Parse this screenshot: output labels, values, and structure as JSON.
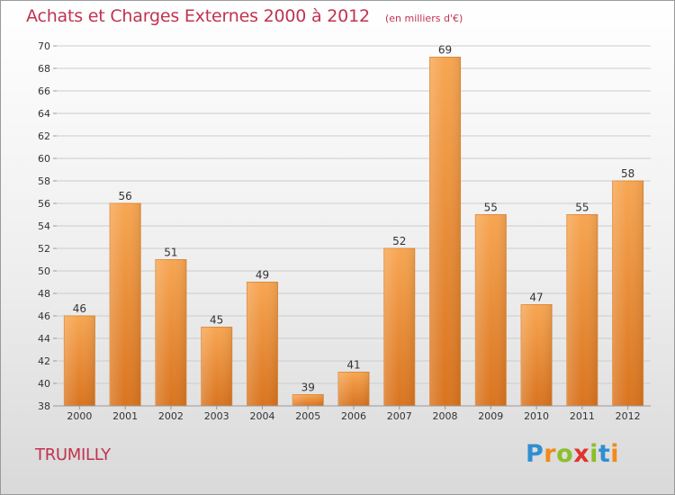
{
  "header": {
    "title": "Achats et Charges Externes 2000 à 2012",
    "subtitle": "(en milliers d'€)"
  },
  "footer": {
    "town": "TRUMILLY",
    "brand": "Proxiti"
  },
  "colors": {
    "title": "#c0334f",
    "bar_light": "#f7a652",
    "bar_dark": "#d9741f",
    "grid": "#cccccc"
  },
  "chart_data": {
    "type": "bar",
    "categories": [
      "2000",
      "2001",
      "2002",
      "2003",
      "2004",
      "2005",
      "2006",
      "2007",
      "2008",
      "2009",
      "2010",
      "2011",
      "2012"
    ],
    "values": [
      46,
      56,
      51,
      45,
      49,
      39,
      41,
      52,
      69,
      55,
      47,
      55,
      58
    ],
    "title": "Achats et Charges Externes 2000 à 2012",
    "subtitle": "(en milliers d'€)",
    "ylim": [
      38,
      70
    ],
    "yticks": [
      38,
      40,
      42,
      44,
      46,
      48,
      50,
      52,
      54,
      56,
      58,
      60,
      62,
      64,
      66,
      68,
      70
    ],
    "grid": true,
    "data_labels": true
  }
}
